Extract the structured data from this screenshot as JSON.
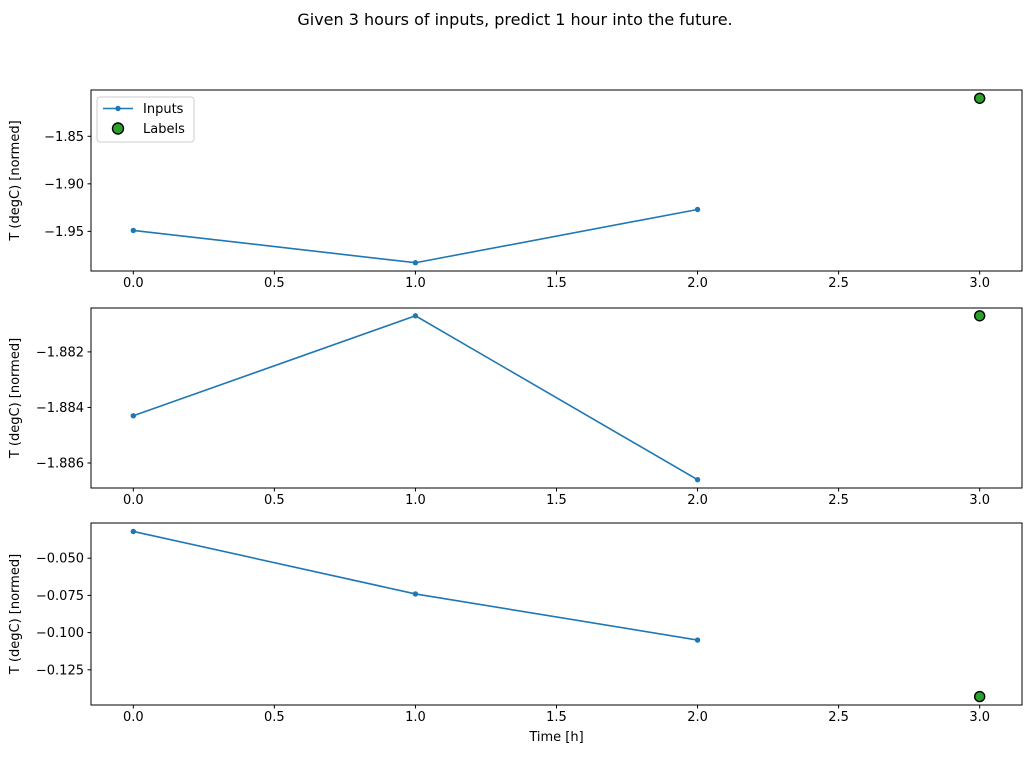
{
  "title": "Given 3 hours of inputs, predict 1 hour into the future.",
  "colors": {
    "inputs_line": "#1f77b4",
    "labels_fill": "#2ca02c",
    "labels_edge": "#000000",
    "spine": "#000000",
    "text": "#000000",
    "legend_border": "#cccccc",
    "legend_bg": "#ffffff"
  },
  "legend": {
    "position": "upper-left",
    "entries": [
      {
        "label": "Inputs",
        "marker": "line-with-dot",
        "color": "#1f77b4"
      },
      {
        "label": "Labels",
        "marker": "circle",
        "color": "#2ca02c"
      }
    ]
  },
  "chart_data": {
    "type": "line",
    "title": "Given 3 hours of inputs, predict 1 hour into the future.",
    "xlabel": "Time [h]",
    "ylabel": "T (degC) [normed]",
    "xlim": [
      -0.15,
      3.15
    ],
    "x_ticks": [
      0.0,
      0.5,
      1.0,
      1.5,
      2.0,
      2.5,
      3.0
    ],
    "x_tick_labels": [
      "0.0",
      "0.5",
      "1.0",
      "1.5",
      "2.0",
      "2.5",
      "3.0"
    ],
    "grid": false,
    "legend_position": "upper-left",
    "subplots": [
      {
        "ylim": [
          -1.9917,
          -1.8013
        ],
        "y_ticks": [
          -1.85,
          -1.9,
          -1.95
        ],
        "y_tick_labels": [
          "−1.85",
          "−1.90",
          "−1.95"
        ],
        "series": [
          {
            "name": "Inputs",
            "type": "line",
            "x": [
              0,
              1,
              2
            ],
            "y": [
              -1.949,
              -1.983,
              -1.927
            ]
          },
          {
            "name": "Labels",
            "type": "scatter",
            "x": [
              3
            ],
            "y": [
              -1.81
            ]
          }
        ],
        "show_legend": true,
        "show_xlabel": false
      },
      {
        "ylim": [
          -1.8869,
          -1.88042
        ],
        "y_ticks": [
          -1.882,
          -1.884,
          -1.886
        ],
        "y_tick_labels": [
          "−1.882",
          "−1.884",
          "−1.886"
        ],
        "series": [
          {
            "name": "Inputs",
            "type": "line",
            "x": [
              0,
              1,
              2
            ],
            "y": [
              -1.8843,
              -1.8807,
              -1.8866
            ]
          },
          {
            "name": "Labels",
            "type": "scatter",
            "x": [
              3
            ],
            "y": [
              -1.8807
            ]
          }
        ],
        "show_legend": false,
        "show_xlabel": false
      },
      {
        "ylim": [
          -0.14865,
          -0.02635
        ],
        "y_ticks": [
          -0.05,
          -0.075,
          -0.1,
          -0.125
        ],
        "y_tick_labels": [
          "−0.050",
          "−0.075",
          "−0.100",
          "−0.125"
        ],
        "series": [
          {
            "name": "Inputs",
            "type": "line",
            "x": [
              0,
              1,
              2
            ],
            "y": [
              -0.032,
              -0.074,
              -0.105
            ]
          },
          {
            "name": "Labels",
            "type": "scatter",
            "x": [
              3
            ],
            "y": [
              -0.143
            ]
          }
        ],
        "show_legend": false,
        "show_xlabel": true
      }
    ]
  }
}
